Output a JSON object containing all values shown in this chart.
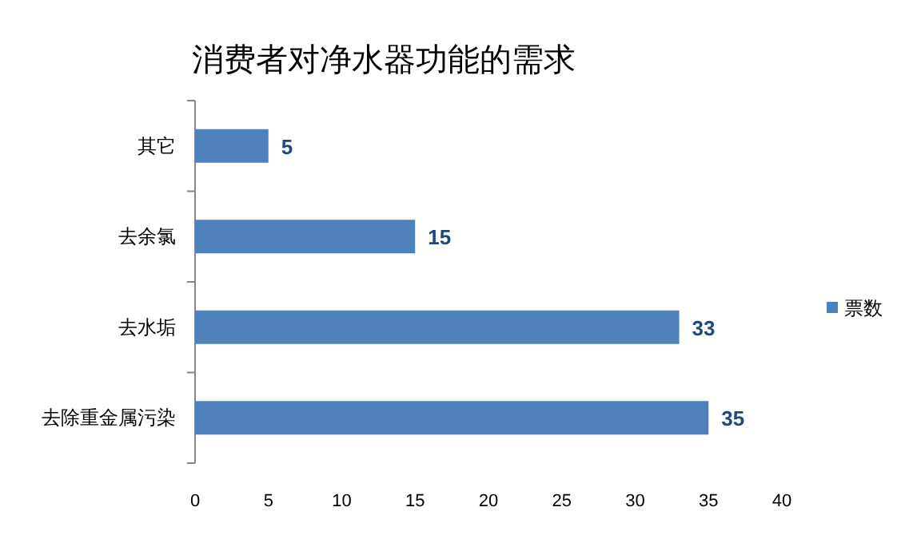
{
  "chart_data": {
    "type": "bar",
    "orientation": "horizontal",
    "title": "消费者对净水器功能的需求",
    "categories": [
      "其它",
      "去余氯",
      "去水垢",
      "去除重金属污染"
    ],
    "series": [
      {
        "name": "票数",
        "color": "#4f81bd",
        "values": [
          5,
          15,
          33,
          35
        ]
      }
    ],
    "xlim": [
      0,
      40
    ],
    "xticks": [
      0,
      5,
      10,
      15,
      20,
      25,
      30,
      35,
      40
    ],
    "data_labels": true,
    "legend": "right",
    "grid": false
  }
}
